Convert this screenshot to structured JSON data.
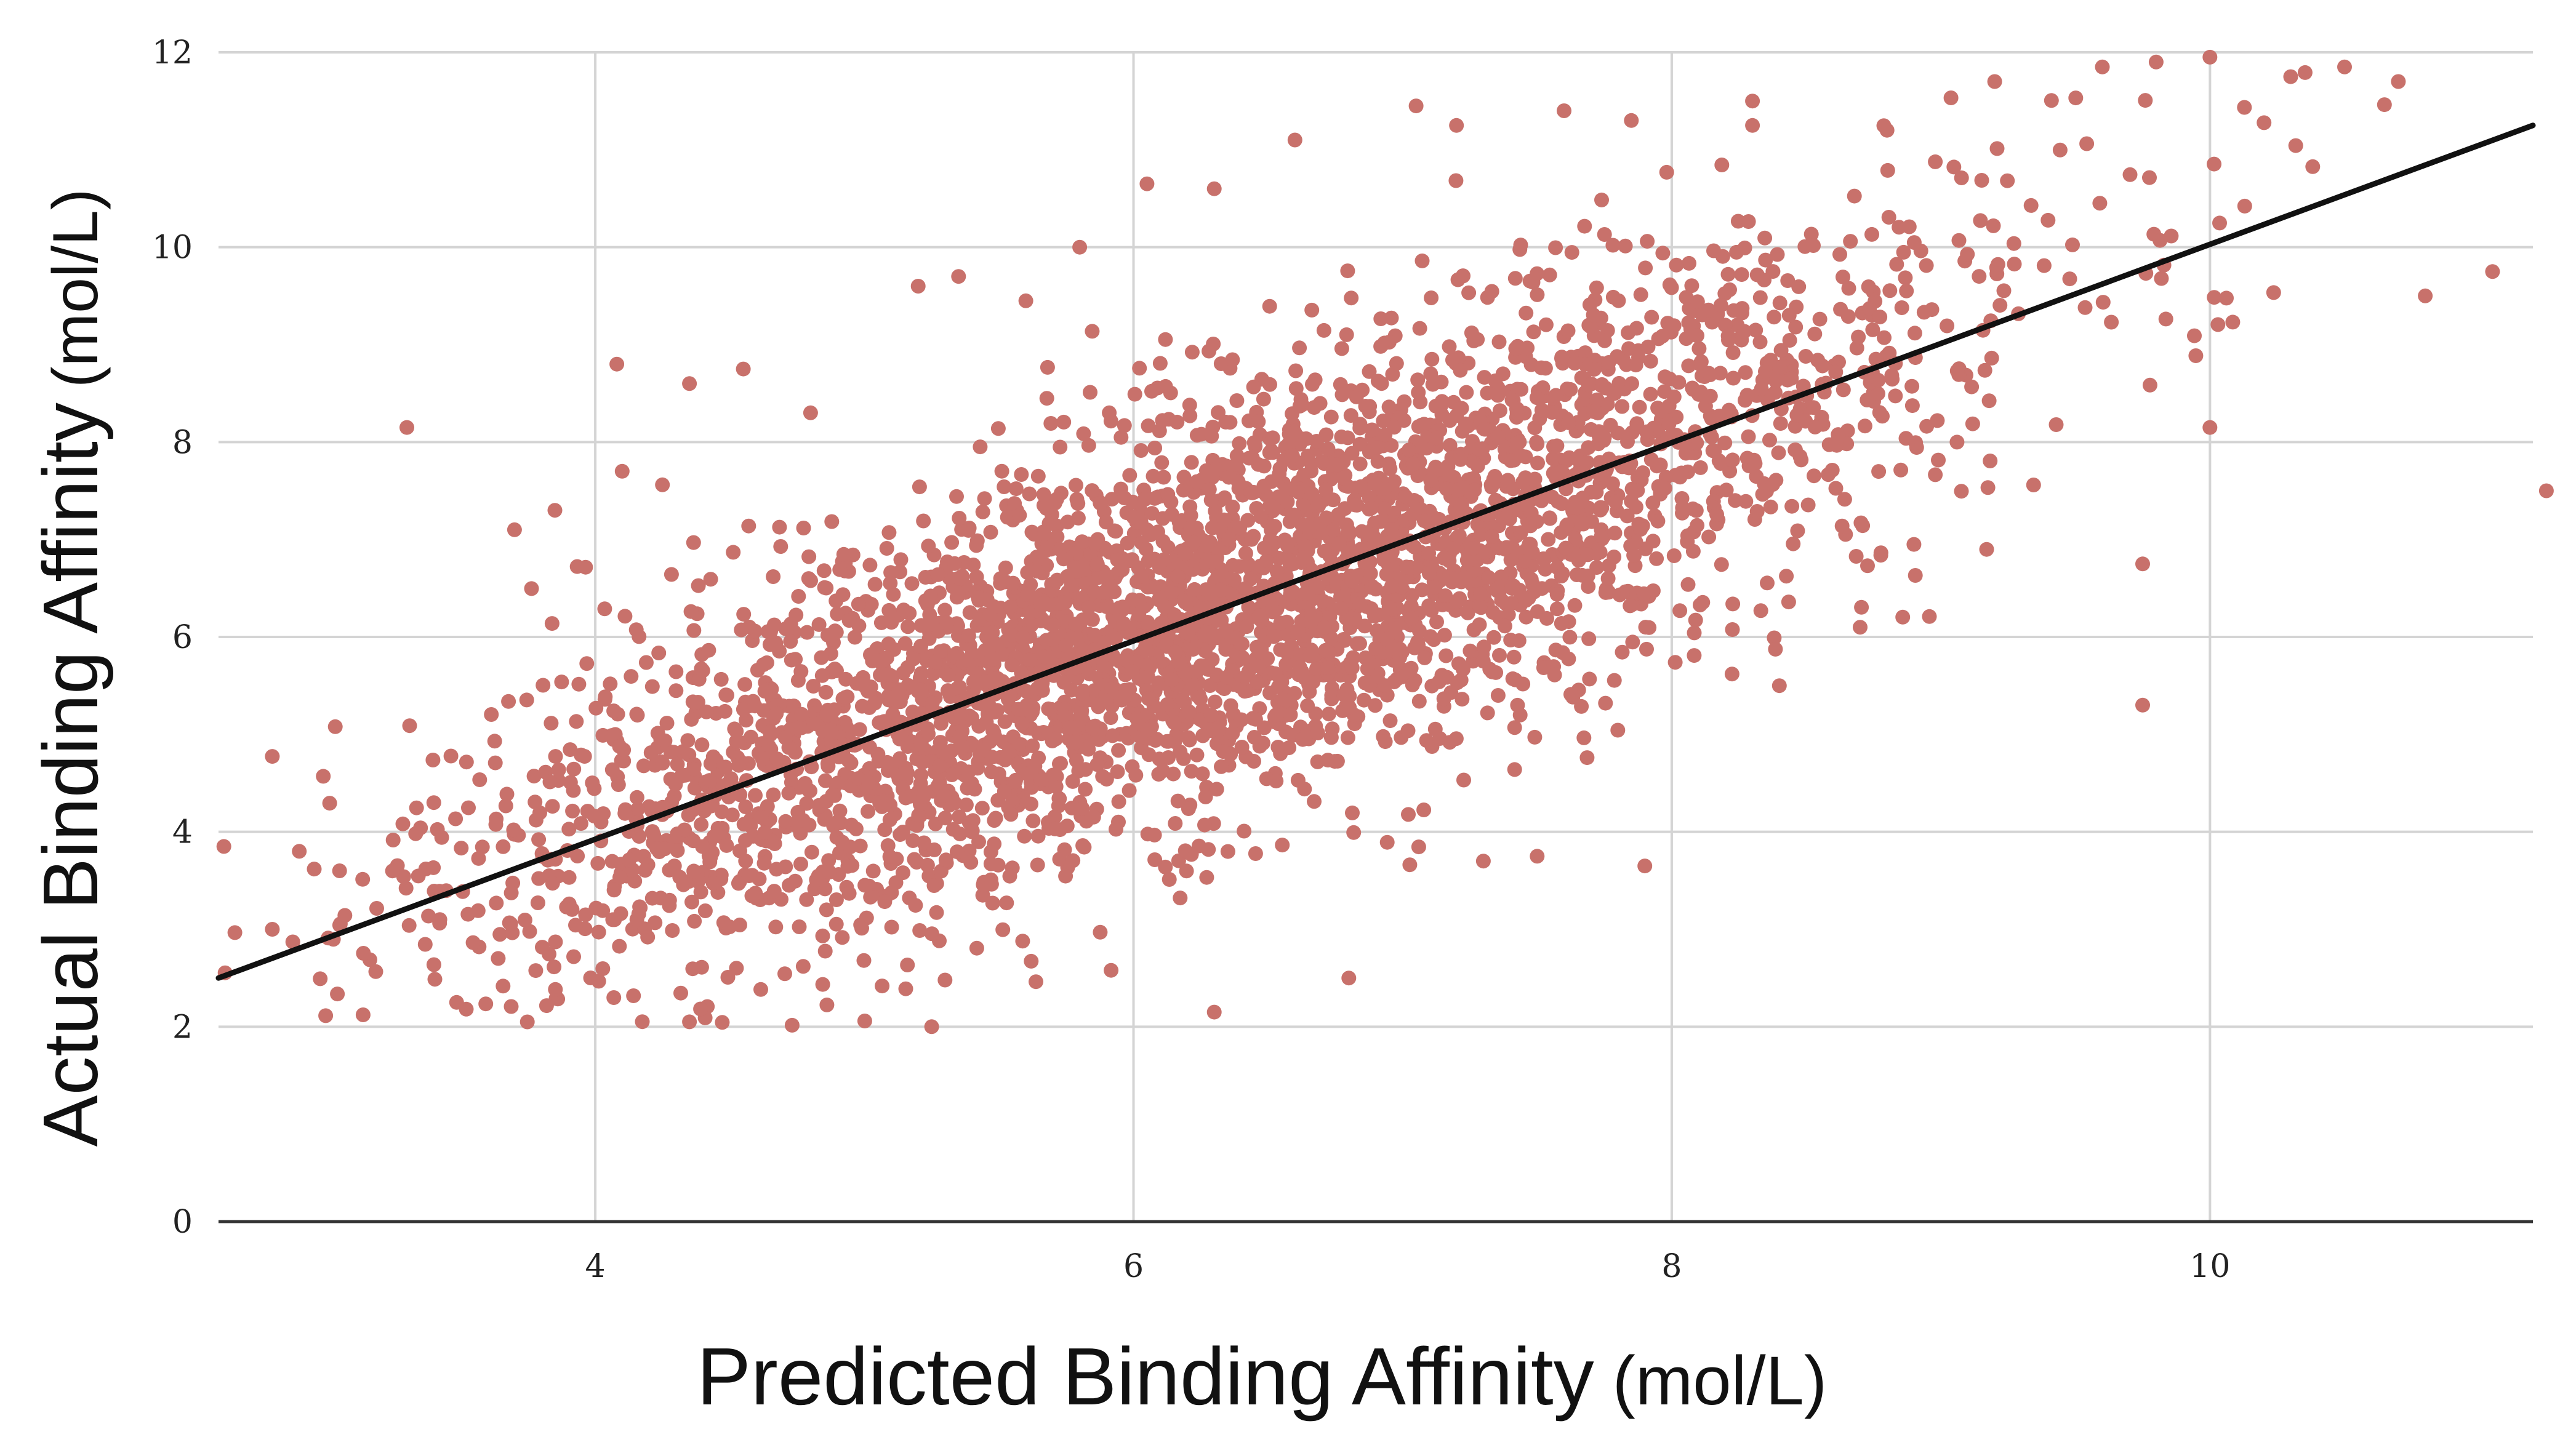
{
  "chart_data": {
    "type": "scatter",
    "title": "",
    "xlabel": "Predicted Binding Affinity",
    "xlabel_unit": "(mol/L)",
    "ylabel": "Actual Binding Affinity",
    "ylabel_unit": "(mol/L)",
    "xlim": [
      2.6,
      11.2
    ],
    "ylim": [
      0,
      12
    ],
    "x_ticks": [
      "4",
      "6",
      "8",
      "10"
    ],
    "y_ticks": [
      "0",
      "2",
      "4",
      "6",
      "8",
      "10",
      "12"
    ],
    "grid": true,
    "legend": "none",
    "point_color": "#c8716b",
    "line_color": "#111111",
    "fit_line": {
      "x": [
        2.6,
        11.2
      ],
      "y": [
        2.5,
        11.25
      ]
    },
    "point_generation": {
      "count": 4000,
      "x_mean": 6.3,
      "x_sd": 1.35,
      "slope": 1.0,
      "intercept": 0.0,
      "residual_sd": 1.05,
      "x_range": [
        2.6,
        11.2
      ],
      "y_range": [
        2.0,
        12.0
      ]
    },
    "points": [
      {
        "x": 2.62,
        "y": 3.85
      },
      {
        "x": 2.9,
        "y": 3.8
      },
      {
        "x": 2.8,
        "y": 3.0
      },
      {
        "x": 3.05,
        "y": 3.6
      },
      {
        "x": 3.3,
        "y": 8.15
      },
      {
        "x": 3.4,
        "y": 4.3
      },
      {
        "x": 3.7,
        "y": 7.1
      },
      {
        "x": 3.85,
        "y": 7.3
      },
      {
        "x": 4.08,
        "y": 8.8
      },
      {
        "x": 4.1,
        "y": 7.7
      },
      {
        "x": 4.35,
        "y": 8.6
      },
      {
        "x": 4.55,
        "y": 8.75
      },
      {
        "x": 4.8,
        "y": 8.3
      },
      {
        "x": 5.2,
        "y": 9.6
      },
      {
        "x": 5.35,
        "y": 9.7
      },
      {
        "x": 5.6,
        "y": 9.45
      },
      {
        "x": 5.8,
        "y": 10.0
      },
      {
        "x": 6.05,
        "y": 10.65
      },
      {
        "x": 6.3,
        "y": 10.6
      },
      {
        "x": 6.6,
        "y": 11.1
      },
      {
        "x": 7.05,
        "y": 11.45
      },
      {
        "x": 7.2,
        "y": 11.25
      },
      {
        "x": 7.6,
        "y": 11.4
      },
      {
        "x": 7.85,
        "y": 11.3
      },
      {
        "x": 8.3,
        "y": 11.5
      },
      {
        "x": 8.3,
        "y": 11.25
      },
      {
        "x": 8.8,
        "y": 11.2
      },
      {
        "x": 9.2,
        "y": 11.7
      },
      {
        "x": 9.6,
        "y": 11.85
      },
      {
        "x": 9.8,
        "y": 11.9
      },
      {
        "x": 10.0,
        "y": 11.95
      },
      {
        "x": 10.3,
        "y": 11.75
      },
      {
        "x": 10.5,
        "y": 11.85
      },
      {
        "x": 10.7,
        "y": 11.7
      },
      {
        "x": 11.25,
        "y": 7.5
      },
      {
        "x": 9.75,
        "y": 5.3
      },
      {
        "x": 9.75,
        "y": 6.75
      },
      {
        "x": 10.0,
        "y": 8.15
      },
      {
        "x": 10.8,
        "y": 9.5
      },
      {
        "x": 11.05,
        "y": 9.75
      },
      {
        "x": 7.9,
        "y": 3.65
      },
      {
        "x": 6.8,
        "y": 2.5
      },
      {
        "x": 6.3,
        "y": 2.15
      },
      {
        "x": 5.25,
        "y": 2.0
      },
      {
        "x": 4.35,
        "y": 2.05
      },
      {
        "x": 7.5,
        "y": 3.75
      },
      {
        "x": 7.3,
        "y": 3.7
      },
      {
        "x": 8.7,
        "y": 6.1
      },
      {
        "x": 8.9,
        "y": 6.95
      },
      {
        "x": 8.4,
        "y": 5.5
      }
    ]
  }
}
